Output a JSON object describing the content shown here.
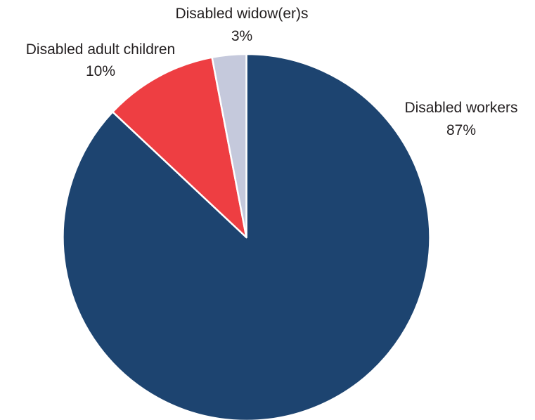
{
  "chart_data": {
    "type": "pie",
    "title": "",
    "slices": [
      {
        "label": "Disabled workers",
        "value_text": "87%",
        "value": 87,
        "color": "#1d4470"
      },
      {
        "label": "Disabled adult children",
        "value_text": "10%",
        "value": 10,
        "color": "#ee3e42"
      },
      {
        "label": "Disabled widow(er)s",
        "value_text": "3%",
        "value": 3,
        "color": "#c5c9dc"
      }
    ],
    "start": "12 o'clock",
    "direction": "clockwise",
    "slice_border_color": "#ffffff"
  }
}
